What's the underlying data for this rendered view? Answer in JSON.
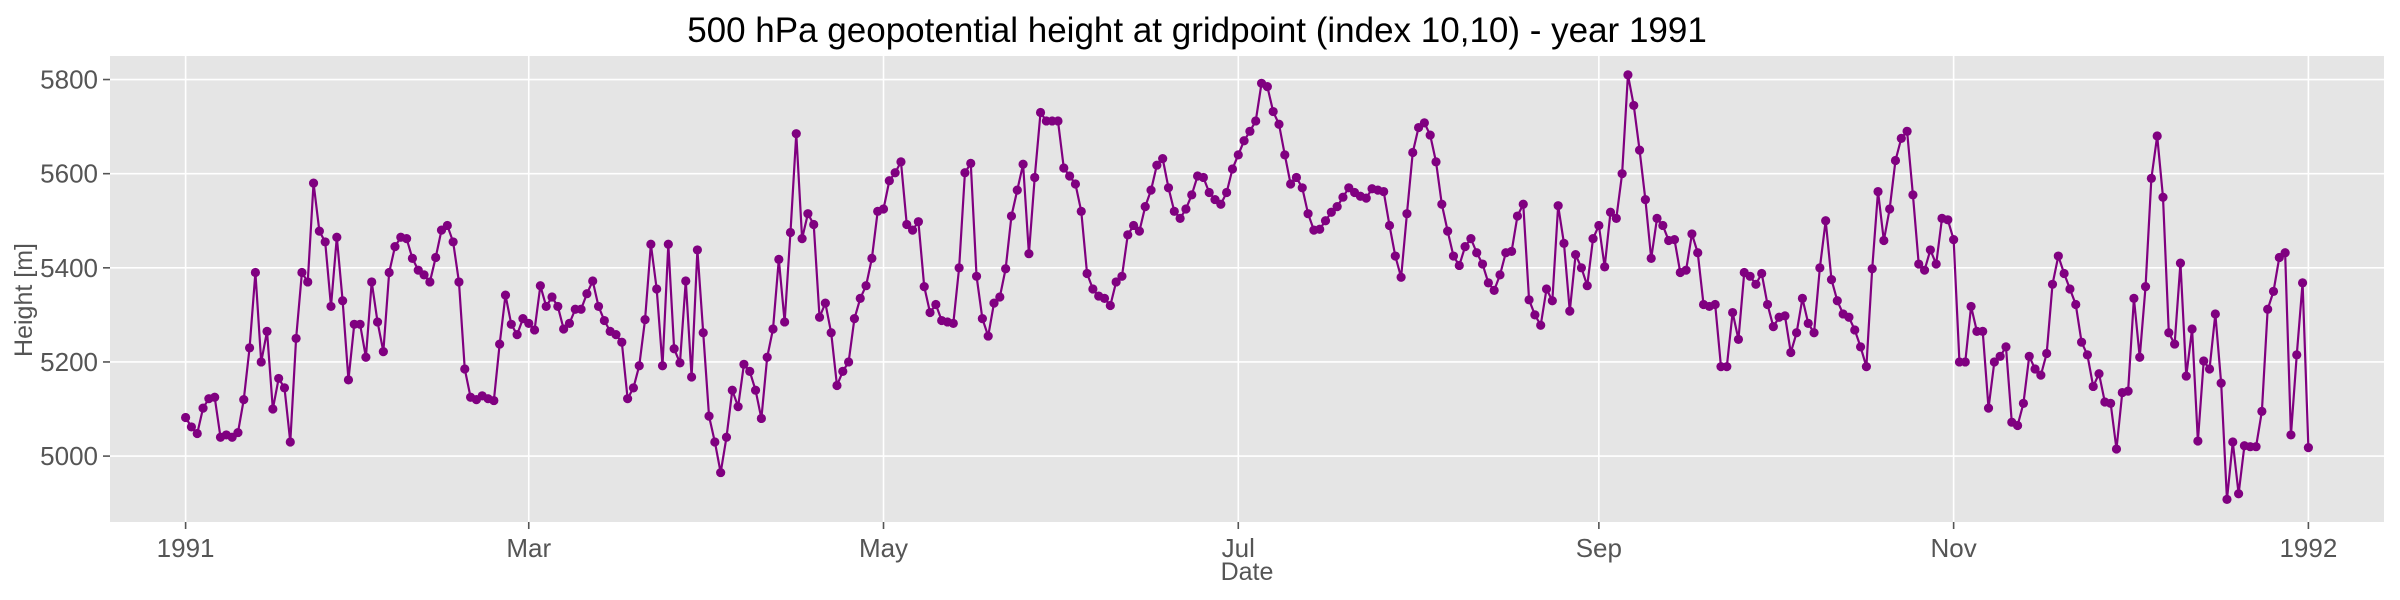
{
  "chart_data": {
    "type": "line",
    "title": "500 hPa geopotential height at gridpoint (index 10,10) - year 1991",
    "xlabel": "Date",
    "ylabel": "Height [m]",
    "x_range": [
      "1990-12-19",
      "1992-01-14"
    ],
    "ylim": [
      4860,
      5850
    ],
    "grid": true,
    "marker": "circle",
    "colors": {
      "series": "#800080",
      "plot_background": "#e5e5e5",
      "grid": "#ffffff",
      "tick_text": "#555555",
      "title_text": "#000000"
    },
    "x_ticks": [
      {
        "date": "1991-01-01",
        "label": "1991"
      },
      {
        "date": "1991-03-01",
        "label": "Mar"
      },
      {
        "date": "1991-05-01",
        "label": "May"
      },
      {
        "date": "1991-07-01",
        "label": "Jul"
      },
      {
        "date": "1991-09-01",
        "label": "Sep"
      },
      {
        "date": "1991-11-01",
        "label": "Nov"
      },
      {
        "date": "1992-01-01",
        "label": "1992"
      }
    ],
    "y_ticks": [
      {
        "value": 5000,
        "label": "5000"
      },
      {
        "value": 5200,
        "label": "5200"
      },
      {
        "value": 5400,
        "label": "5400"
      },
      {
        "value": 5600,
        "label": "5600"
      },
      {
        "value": 5800,
        "label": "5800"
      }
    ],
    "series": [
      {
        "start_date": "1991-01-01",
        "interval": "daily",
        "values": [
          5082,
          5062,
          5048,
          5102,
          5122,
          5125,
          5040,
          5045,
          5040,
          5050,
          5120,
          5230,
          5390,
          5200,
          5265,
          5100,
          5165,
          5145,
          5030,
          5250,
          5390,
          5370,
          5580,
          5478,
          5455,
          5318,
          5465,
          5330,
          5162,
          5280,
          5280,
          5210,
          5370,
          5285,
          5222,
          5390,
          5445,
          5465,
          5462,
          5420,
          5395,
          5385,
          5370,
          5422,
          5480,
          5490,
          5455,
          5370,
          5185,
          5125,
          5120,
          5128,
          5122,
          5118,
          5238,
          5342,
          5280,
          5258,
          5292,
          5282,
          5268,
          5362,
          5318,
          5338,
          5318,
          5270,
          5282,
          5312,
          5312,
          5345,
          5372,
          5318,
          5288,
          5265,
          5258,
          5242,
          5122,
          5145,
          5192,
          5290,
          5450,
          5355,
          5192,
          5450,
          5228,
          5198,
          5372,
          5168,
          5438,
          5262,
          5085,
          5030,
          4965,
          5040,
          5140,
          5105,
          5195,
          5180,
          5140,
          5080,
          5210,
          5270,
          5418,
          5285,
          5475,
          5685,
          5462,
          5515,
          5492,
          5295,
          5325,
          5262,
          5150,
          5180,
          5200,
          5292,
          5335,
          5362,
          5420,
          5520,
          5525,
          5585,
          5602,
          5625,
          5492,
          5480,
          5498,
          5360,
          5305,
          5322,
          5288,
          5285,
          5282,
          5400,
          5602,
          5622,
          5382,
          5292,
          5255,
          5325,
          5338,
          5398,
          5510,
          5565,
          5620,
          5430,
          5592,
          5730,
          5712,
          5712,
          5712,
          5612,
          5595,
          5578,
          5520,
          5388,
          5355,
          5340,
          5335,
          5320,
          5370,
          5382,
          5470,
          5490,
          5478,
          5530,
          5565,
          5618,
          5632,
          5570,
          5520,
          5505,
          5525,
          5555,
          5595,
          5592,
          5560,
          5545,
          5535,
          5560,
          5610,
          5640,
          5670,
          5690,
          5712,
          5792,
          5785,
          5732,
          5705,
          5640,
          5578,
          5592,
          5570,
          5515,
          5480,
          5482,
          5500,
          5518,
          5530,
          5550,
          5570,
          5560,
          5552,
          5548,
          5568,
          5565,
          5562,
          5490,
          5425,
          5380,
          5515,
          5645,
          5698,
          5708,
          5682,
          5625,
          5535,
          5478,
          5425,
          5405,
          5445,
          5462,
          5432,
          5408,
          5368,
          5352,
          5385,
          5432,
          5435,
          5510,
          5535,
          5332,
          5300,
          5278,
          5355,
          5330,
          5532,
          5452,
          5308,
          5428,
          5400,
          5362,
          5462,
          5490,
          5402,
          5518,
          5505,
          5600,
          5810,
          5745,
          5650,
          5545,
          5420,
          5505,
          5490,
          5458,
          5460,
          5390,
          5395,
          5472,
          5432,
          5322,
          5318,
          5322,
          5190,
          5190,
          5305,
          5248,
          5390,
          5382,
          5365,
          5388,
          5322,
          5275,
          5295,
          5298,
          5220,
          5262,
          5335,
          5282,
          5262,
          5400,
          5500,
          5375,
          5330,
          5302,
          5295,
          5268,
          5232,
          5190,
          5398,
          5562,
          5458,
          5525,
          5628,
          5675,
          5690,
          5555,
          5408,
          5395,
          5438,
          5408,
          5505,
          5502,
          5460,
          5200,
          5200,
          5318,
          5265,
          5265,
          5102,
          5200,
          5212,
          5232,
          5072,
          5065,
          5112,
          5212,
          5185,
          5172,
          5218,
          5365,
          5425,
          5388,
          5355,
          5322,
          5242,
          5215,
          5148,
          5175,
          5115,
          5112,
          5015,
          5135,
          5138,
          5335,
          5210,
          5360,
          5590,
          5680,
          5550,
          5262,
          5238,
          5410,
          5170,
          5270,
          5032,
          5202,
          5185,
          5302,
          5155,
          4908,
          5030,
          4920,
          5022,
          5020,
          5020,
          5095,
          5312,
          5350,
          5422,
          5432,
          5045,
          5215,
          5368,
          5018
        ]
      }
    ]
  }
}
